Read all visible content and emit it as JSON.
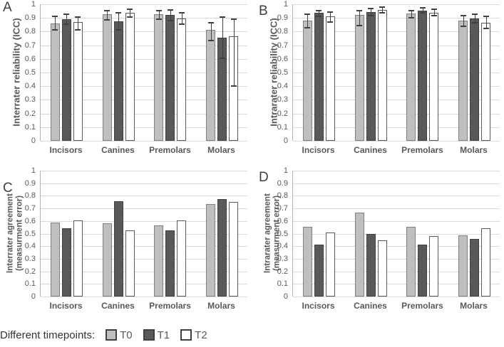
{
  "legend": {
    "label": "Different timepoints:",
    "entries": [
      {
        "label": "T0",
        "fill": "#bfbfbf",
        "border": "#404040"
      },
      {
        "label": "T1",
        "fill": "#595959",
        "border": "#404040"
      },
      {
        "label": "T2",
        "fill": "#ffffff",
        "border": "#404040"
      }
    ]
  },
  "colors": {
    "grid": "#d9d9d9",
    "axis_line": "#b3b3b3",
    "error_bar": "#404040",
    "tick_text": "#595959",
    "category_text": "#595959",
    "panel_letter": "#3f3f3f"
  },
  "chart_data": [
    {
      "panel": "A",
      "type": "bar",
      "ylabel_lines": [
        "Interrater reliability (ICC)"
      ],
      "categories": [
        "Incisors",
        "Canines",
        "Premolars",
        "Molars"
      ],
      "ylim": [
        0,
        1
      ],
      "y_ticks": [
        "1",
        "0.9",
        "0.8",
        "0.7",
        "0.6",
        "0.5",
        "0.4",
        "0.3",
        "0.2",
        "0.1",
        "0"
      ],
      "grid": true,
      "error_bars": true,
      "legend_position": "none",
      "series": [
        {
          "name": "T0",
          "fill": "#bfbfbf",
          "border": "#7f7f7f",
          "values": [
            0.86,
            0.925,
            0.925,
            0.815
          ],
          "error_low": [
            0.81,
            0.885,
            0.89,
            0.735
          ],
          "error_high": [
            0.91,
            0.955,
            0.955,
            0.865
          ]
        },
        {
          "name": "T1",
          "fill": "#595959",
          "border": "#3f3f3f",
          "values": [
            0.89,
            0.875,
            0.92,
            0.755
          ],
          "error_low": [
            0.855,
            0.815,
            0.88,
            0.605
          ],
          "error_high": [
            0.925,
            0.935,
            0.96,
            0.905
          ]
        },
        {
          "name": "T2",
          "fill": "#ffffff",
          "border": "#595959",
          "values": [
            0.87,
            0.935,
            0.895,
            0.765
          ],
          "error_low": [
            0.815,
            0.905,
            0.855,
            0.4
          ],
          "error_high": [
            0.905,
            0.965,
            0.935,
            0.89
          ]
        }
      ]
    },
    {
      "panel": "B",
      "type": "bar",
      "ylabel_lines": [
        "Intrarater reliability (ICC)"
      ],
      "categories": [
        "Incisors",
        "Canines",
        "Premolars",
        "Molars"
      ],
      "ylim": [
        0,
        1
      ],
      "y_ticks": [
        "1",
        "0.9",
        "0.8",
        "0.7",
        "0.6",
        "0.5",
        "0.4",
        "0.3",
        "0.2",
        "0.1",
        "0"
      ],
      "grid": true,
      "error_bars": true,
      "legend_position": "none",
      "series": [
        {
          "name": "T0",
          "fill": "#bfbfbf",
          "border": "#7f7f7f",
          "values": [
            0.88,
            0.92,
            0.93,
            0.88
          ],
          "error_low": [
            0.83,
            0.845,
            0.9,
            0.84
          ],
          "error_high": [
            0.925,
            0.955,
            0.955,
            0.915
          ]
        },
        {
          "name": "T1",
          "fill": "#595959",
          "border": "#3f3f3f",
          "values": [
            0.935,
            0.945,
            0.955,
            0.895
          ],
          "error_low": [
            0.91,
            0.915,
            0.935,
            0.865
          ],
          "error_high": [
            0.955,
            0.97,
            0.975,
            0.925
          ]
        },
        {
          "name": "T2",
          "fill": "#ffffff",
          "border": "#595959",
          "values": [
            0.91,
            0.96,
            0.94,
            0.865
          ],
          "error_low": [
            0.87,
            0.935,
            0.915,
            0.825
          ],
          "error_high": [
            0.945,
            0.98,
            0.965,
            0.91
          ]
        }
      ]
    },
    {
      "panel": "C",
      "type": "bar",
      "ylabel_lines": [
        "Interrater agreement",
        "(measurment error)"
      ],
      "categories": [
        "Incisors",
        "Canines",
        "Premolars",
        "Molars"
      ],
      "ylim": [
        0,
        1
      ],
      "y_ticks": [
        "1",
        "0.9",
        "0.8",
        "0.7",
        "0.6",
        "0.5",
        "0.4",
        "0.3",
        "0.2",
        "0.1",
        "0"
      ],
      "grid": true,
      "error_bars": false,
      "legend_position": "none",
      "series": [
        {
          "name": "T0",
          "fill": "#bfbfbf",
          "border": "#7f7f7f",
          "values": [
            0.59,
            0.58,
            0.565,
            0.735
          ]
        },
        {
          "name": "T1",
          "fill": "#595959",
          "border": "#3f3f3f",
          "values": [
            0.54,
            0.755,
            0.525,
            0.775
          ]
        },
        {
          "name": "T2",
          "fill": "#ffffff",
          "border": "#595959",
          "values": [
            0.605,
            0.525,
            0.605,
            0.75
          ]
        }
      ]
    },
    {
      "panel": "D",
      "type": "bar",
      "ylabel_lines": [
        "Intrarater agreement",
        "(measurment error)"
      ],
      "categories": [
        "Incisors",
        "Canines",
        "Premolars",
        "Molars"
      ],
      "ylim": [
        0,
        1
      ],
      "y_ticks": [
        "1",
        "0.9",
        "0.8",
        "0.7",
        "0.6",
        "0.5",
        "0.4",
        "0.3",
        "0.2",
        "0.1",
        "0"
      ],
      "grid": true,
      "error_bars": false,
      "legend_position": "none",
      "series": [
        {
          "name": "T0",
          "fill": "#bfbfbf",
          "border": "#7f7f7f",
          "values": [
            0.555,
            0.665,
            0.555,
            0.485
          ]
        },
        {
          "name": "T1",
          "fill": "#595959",
          "border": "#3f3f3f",
          "values": [
            0.415,
            0.495,
            0.415,
            0.46
          ]
        },
        {
          "name": "T2",
          "fill": "#ffffff",
          "border": "#595959",
          "values": [
            0.51,
            0.445,
            0.48,
            0.545
          ]
        }
      ]
    }
  ]
}
